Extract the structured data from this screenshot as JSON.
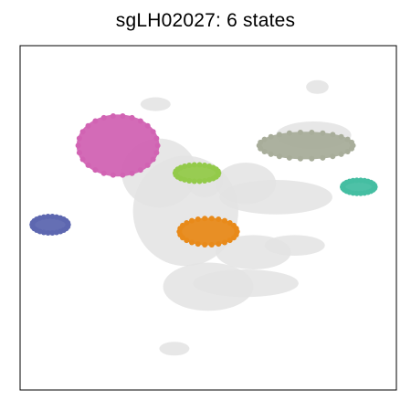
{
  "chart_data": {
    "type": "scatter",
    "title": "sgLH02027: 6 states",
    "xlabel": "",
    "ylabel": "",
    "grid": false,
    "legend": "none",
    "background_color": "#e3e3e3",
    "background_regions": [
      {
        "cx": 0.37,
        "cy": 0.37,
        "rx": 0.1,
        "ry": 0.1
      },
      {
        "cx": 0.44,
        "cy": 0.48,
        "rx": 0.14,
        "ry": 0.16
      },
      {
        "cx": 0.6,
        "cy": 0.4,
        "rx": 0.08,
        "ry": 0.06
      },
      {
        "cx": 0.5,
        "cy": 0.7,
        "rx": 0.12,
        "ry": 0.07
      },
      {
        "cx": 0.62,
        "cy": 0.6,
        "rx": 0.1,
        "ry": 0.05
      },
      {
        "cx": 0.68,
        "cy": 0.44,
        "rx": 0.15,
        "ry": 0.05
      },
      {
        "cx": 0.78,
        "cy": 0.26,
        "rx": 0.1,
        "ry": 0.04
      },
      {
        "cx": 0.73,
        "cy": 0.58,
        "rx": 0.08,
        "ry": 0.03
      },
      {
        "cx": 0.6,
        "cy": 0.69,
        "rx": 0.14,
        "ry": 0.04
      },
      {
        "cx": 0.36,
        "cy": 0.17,
        "rx": 0.04,
        "ry": 0.02
      },
      {
        "cx": 0.79,
        "cy": 0.12,
        "rx": 0.03,
        "ry": 0.02
      },
      {
        "cx": 0.41,
        "cy": 0.88,
        "rx": 0.04,
        "ry": 0.02
      },
      {
        "cx": 0.49,
        "cy": 0.39,
        "rx": 0.05,
        "ry": 0.05
      }
    ],
    "states": [
      {
        "color": "#d163b3",
        "cx": 0.26,
        "cy": 0.29,
        "rx": 0.11,
        "ry": 0.09
      },
      {
        "color": "#a8ad9a",
        "cx": 0.76,
        "cy": 0.29,
        "rx": 0.13,
        "ry": 0.04
      },
      {
        "color": "#93ca4a",
        "cx": 0.47,
        "cy": 0.37,
        "rx": 0.06,
        "ry": 0.025
      },
      {
        "color": "#45bea2",
        "cx": 0.9,
        "cy": 0.41,
        "rx": 0.045,
        "ry": 0.02
      },
      {
        "color": "#5d67b0",
        "cx": 0.08,
        "cy": 0.52,
        "rx": 0.05,
        "ry": 0.025
      },
      {
        "color": "#e88a1a",
        "cx": 0.5,
        "cy": 0.54,
        "rx": 0.08,
        "ry": 0.04
      }
    ]
  }
}
